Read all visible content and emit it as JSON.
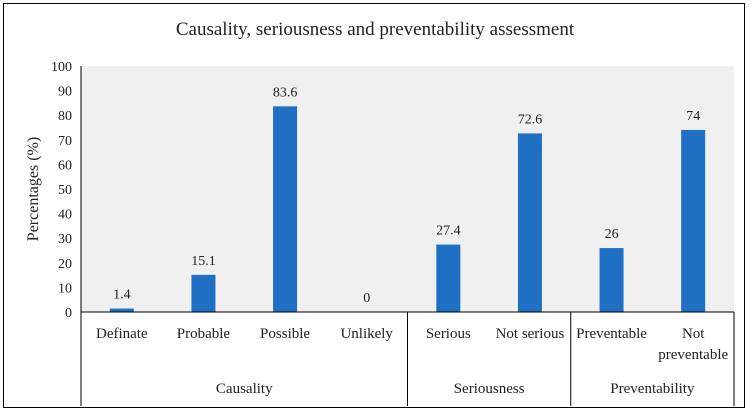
{
  "chart_data": {
    "type": "bar",
    "title": "Causality, seriousness and preventability assessment",
    "xlabel": "",
    "ylabel": "Percentages (%)",
    "ylim": [
      0,
      100
    ],
    "yticks": [
      "0",
      "10",
      "20",
      "30",
      "40",
      "50",
      "60",
      "70",
      "80",
      "90",
      "100"
    ],
    "grid": false,
    "legend": "none",
    "bar_color": "#1f6fc4",
    "plot_background": "#f0f0f0",
    "categories": [
      {
        "label": [
          "Definate"
        ],
        "value": 1.4,
        "value_label": "1.4"
      },
      {
        "label": [
          "Probable"
        ],
        "value": 15.1,
        "value_label": "15.1"
      },
      {
        "label": [
          "Possible"
        ],
        "value": 83.6,
        "value_label": "83.6"
      },
      {
        "label": [
          "Unlikely"
        ],
        "value": 0,
        "value_label": "0"
      },
      {
        "label": [
          "Serious"
        ],
        "value": 27.4,
        "value_label": "27.4"
      },
      {
        "label": [
          "Not serious"
        ],
        "value": 72.6,
        "value_label": "72.6"
      },
      {
        "label": [
          "Preventable"
        ],
        "value": 26,
        "value_label": "26"
      },
      {
        "label": [
          "Not",
          "preventable"
        ],
        "value": 74,
        "value_label": "74"
      }
    ],
    "groups": [
      {
        "name": "Causality",
        "start": 0,
        "end": 3
      },
      {
        "name": "Seriousness",
        "start": 4,
        "end": 5
      },
      {
        "name": "Preventability",
        "start": 6,
        "end": 7
      }
    ]
  }
}
